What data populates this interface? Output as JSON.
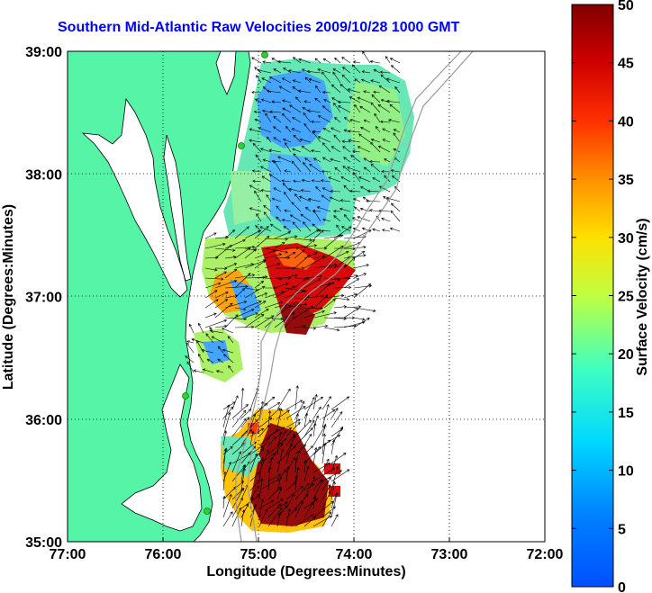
{
  "title": "Southern Mid-Atlantic Raw Velocities 2009/10/28 1000 GMT",
  "colors": {
    "title": "#0000ff",
    "land": "#55f4a6",
    "coastline": "#000000",
    "bathymetry": "#9a9a9a",
    "station": "#33cc33"
  },
  "axes": {
    "xlabel": "Longitude (Degrees:Minutes)",
    "ylabel": "Latitude (Degrees:Minutes)",
    "xticks": [
      "77:00",
      "76:00",
      "75:00",
      "74:00",
      "73:00",
      "72:00"
    ],
    "yticks": [
      "39:00",
      "38:00",
      "37:00",
      "36:00",
      "35:00"
    ],
    "xlim": [
      -77,
      -72
    ],
    "ylim": [
      35,
      39
    ],
    "grid": "dotted"
  },
  "colorbar": {
    "label": "Surface Velocity (cm/s)",
    "ticks": [
      "50",
      "45",
      "40",
      "35",
      "30",
      "25",
      "20",
      "15",
      "10",
      "5",
      "0"
    ],
    "range": [
      0,
      50
    ],
    "colormap": "jet"
  }
}
